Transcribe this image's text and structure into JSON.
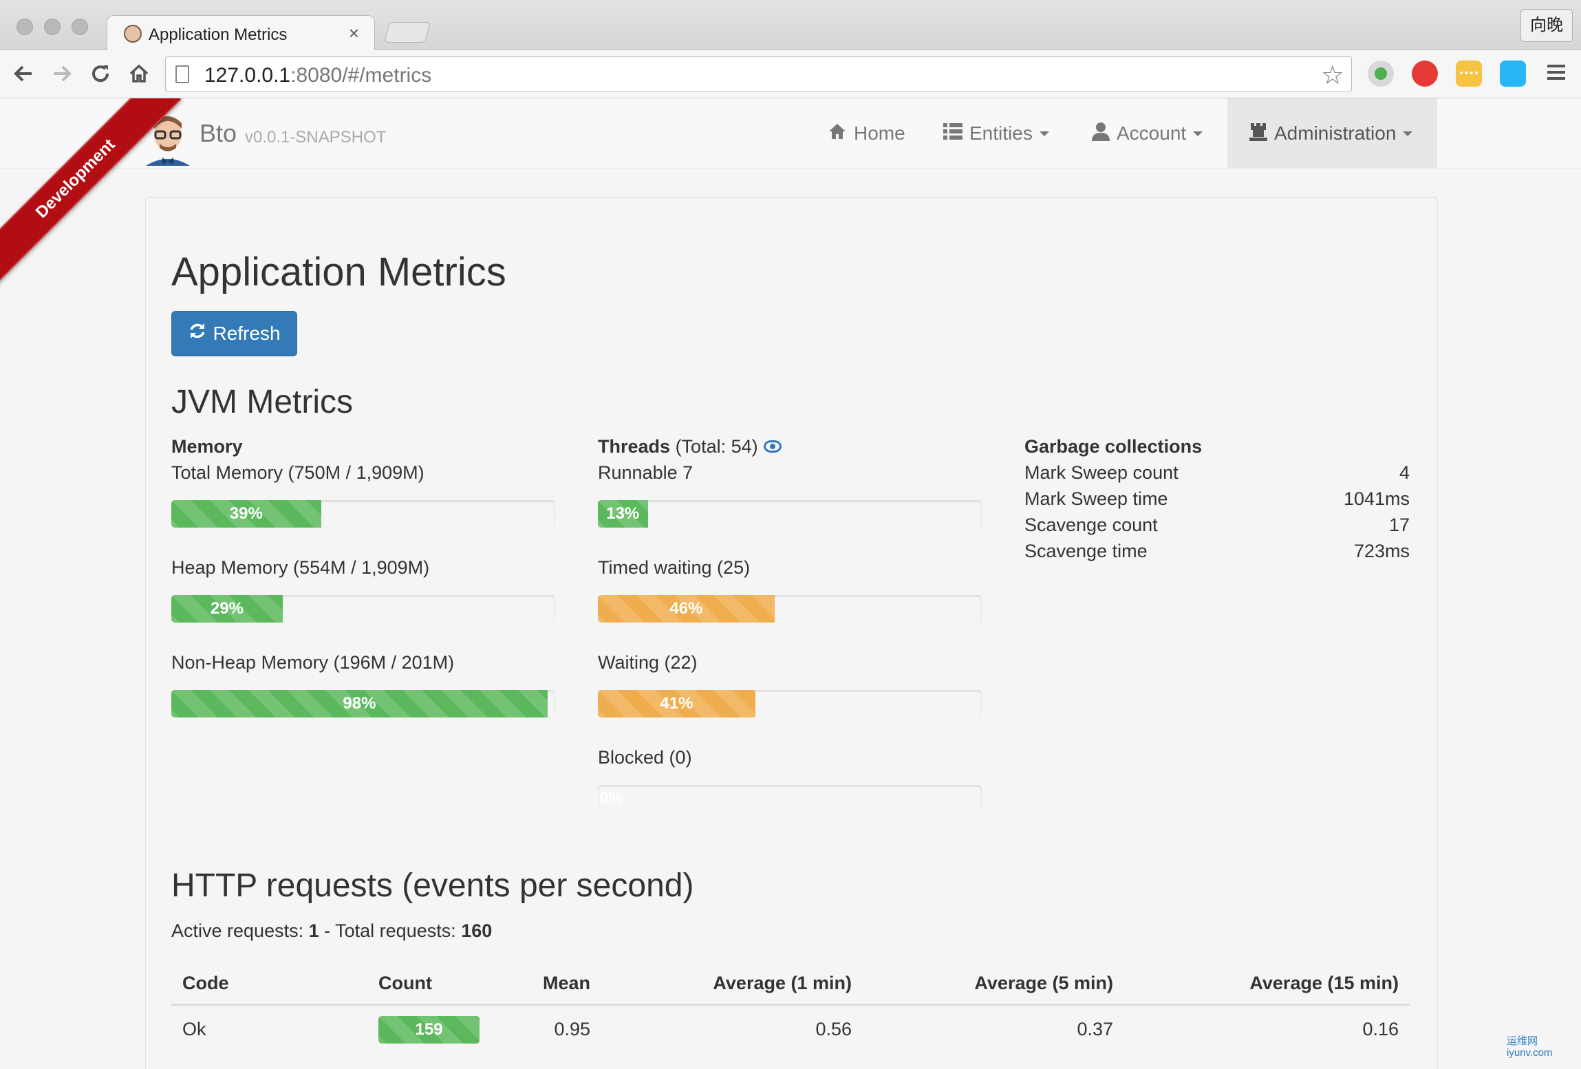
{
  "browser": {
    "tab_title": "Application Metrics",
    "tab_close": "×",
    "profile_label": "向晚",
    "url_host": "127.0.0.1",
    "url_rest": ":8080/#/metrics",
    "back_icon": "arrow-left-icon",
    "forward_icon": "arrow-right-icon",
    "reload_icon": "reload-icon",
    "home_icon": "home-icon"
  },
  "navbar": {
    "brand_name": "Bto",
    "brand_version": "v0.0.1-SNAPSHOT",
    "ribbon": "Development",
    "items": [
      {
        "label": "Home",
        "icon": "home-icon"
      },
      {
        "label": "Entities",
        "icon": "list-icon"
      },
      {
        "label": "Account",
        "icon": "user-icon"
      },
      {
        "label": "Administration",
        "icon": "tower-icon"
      }
    ]
  },
  "page": {
    "title": "Application Metrics",
    "refresh_label": "Refresh"
  },
  "jvm": {
    "title": "JVM Metrics",
    "memory": {
      "title": "Memory",
      "items": [
        {
          "label": "Total Memory (750M / 1,909M)",
          "percent": 39,
          "percent_label": "39%",
          "style": "success"
        },
        {
          "label": "Heap Memory (554M / 1,909M)",
          "percent": 29,
          "percent_label": "29%",
          "style": "success"
        },
        {
          "label": "Non-Heap Memory (196M / 201M)",
          "percent": 98,
          "percent_label": "98%",
          "style": "success"
        }
      ]
    },
    "threads": {
      "title": "Threads",
      "total": "(Total: 54)",
      "items": [
        {
          "label": "Runnable 7",
          "percent": 13,
          "percent_label": "13%",
          "style": "success"
        },
        {
          "label": "Timed waiting (25)",
          "percent": 46,
          "percent_label": "46%",
          "style": "warning"
        },
        {
          "label": "Waiting (22)",
          "percent": 41,
          "percent_label": "41%",
          "style": "warning"
        },
        {
          "label": "Blocked (0)",
          "percent": 0,
          "percent_label": "0%",
          "style": "danger"
        }
      ]
    },
    "gc": {
      "title": "Garbage collections",
      "rows": [
        {
          "label": "Mark Sweep count",
          "value": "4"
        },
        {
          "label": "Mark Sweep time",
          "value": "1041ms"
        },
        {
          "label": "Scavenge count",
          "value": "17"
        },
        {
          "label": "Scavenge time",
          "value": "723ms"
        }
      ]
    }
  },
  "http": {
    "title": "HTTP requests (events per second)",
    "active_label": "Active requests: ",
    "active_value": "1",
    "total_label": " - Total requests: ",
    "total_value": "160",
    "headers": [
      "Code",
      "Count",
      "Mean",
      "Average (1 min)",
      "Average (5 min)",
      "Average (15 min)"
    ],
    "rows": [
      {
        "code": "Ok",
        "count": "159",
        "count_fraction": 0.99,
        "mean": "0.95",
        "avg1": "0.56",
        "avg5": "0.37",
        "avg15": "0.16"
      }
    ]
  },
  "watermark": {
    "line1": "运维网",
    "line2": "iyunv.com"
  }
}
